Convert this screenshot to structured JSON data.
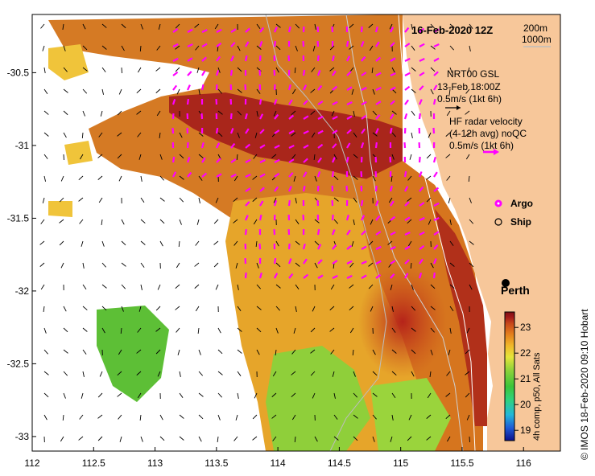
{
  "map": {
    "date": "16-Feb-2020 12Z",
    "depth_labels": [
      "200m",
      "1000m"
    ],
    "lon_ticks": [
      "112",
      "112.5",
      "113",
      "113.5",
      "114",
      "114.5",
      "115",
      "115.5",
      "116"
    ],
    "lat_ticks": [
      "-30.5",
      "-31",
      "-31.5",
      "-32",
      "-32.5",
      "-33"
    ],
    "lon_range": [
      112,
      116.3
    ],
    "lat_range": [
      -33.1,
      -30.1
    ]
  },
  "legend": {
    "gsl_title": "NRT00 GSL",
    "gsl_time": "13-Feb 18:00Z",
    "gsl_scale": "0.5m/s (1kt 6h)",
    "hf_line1": "HF radar velocity",
    "hf_line2": "(4-12h avg) noQC",
    "hf_scale": "0.5m/s (1kt 6h)",
    "argo_label": "Argo",
    "ship_label": "Ship"
  },
  "city": {
    "name": "Perth",
    "lon": 115.86,
    "lat": -31.95
  },
  "colorbar": {
    "ticks": [
      "19",
      "20",
      "21",
      "22",
      "23"
    ],
    "range": [
      18.6,
      23.6
    ],
    "title": "4h comp, p50, All Sats",
    "colors": [
      "#0b0f8c",
      "#1f5bd6",
      "#23b7d8",
      "#2fd27b",
      "#3cc43a",
      "#8fd33a",
      "#e6e53a",
      "#f0b72a",
      "#e37d1c",
      "#c8471a",
      "#a31a1a",
      "#7d0e14"
    ]
  },
  "credit": "© IMOS 18-Feb-2020 09:10 Hobart",
  "colors": {
    "land": "#f7c79a",
    "argo": "#ff00ff",
    "hf_arrow": "#ff00ff",
    "gsl_arrow": "#000000",
    "contour": "#bdbdbd"
  }
}
